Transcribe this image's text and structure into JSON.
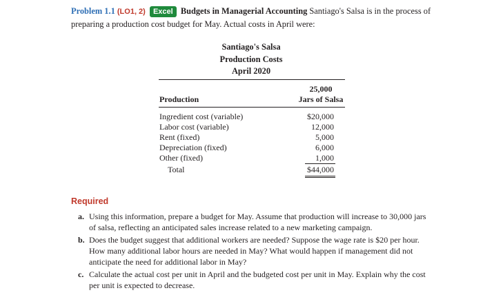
{
  "problem": {
    "label": "Problem 1.1",
    "lo": "(LO1, 2)",
    "badge": "Excel",
    "title": "Budgets in Managerial Accounting",
    "intro": "Santiago's Salsa is in the process of preparing a production cost budget for May. Actual costs in April were:"
  },
  "statement": {
    "company": "Santiago's Salsa",
    "name": "Production Costs",
    "period": "April 2020",
    "volume_line1": "25,000",
    "volume_line2": "Jars of Salsa",
    "section_header": "Production",
    "rows": [
      {
        "label": "Ingredient cost (variable)",
        "amount": "$20,000"
      },
      {
        "label": "Labor cost (variable)",
        "amount": "12,000"
      },
      {
        "label": "Rent (fixed)",
        "amount": "5,000"
      },
      {
        "label": "Depreciation (fixed)",
        "amount": "6,000"
      },
      {
        "label": "Other (fixed)",
        "amount": "1,000"
      }
    ],
    "total_label": "Total",
    "total_amount": "$44,000"
  },
  "required": {
    "heading": "Required",
    "items": [
      {
        "letter": "a.",
        "text": "Using this information, prepare a budget for May. Assume that production will increase to 30,000 jars of salsa, reflecting an anticipated sales increase related to a new marketing campaign."
      },
      {
        "letter": "b.",
        "text": "Does the budget suggest that additional workers are needed? Suppose the wage rate is $20 per hour. How many additional labor hours are needed in May? What would happen if management did not anticipate the need for additional labor in May?"
      },
      {
        "letter": "c.",
        "text": "Calculate the actual cost per unit in April and the budgeted cost per unit in May. Explain why the cost per unit is expected to decrease."
      }
    ]
  }
}
